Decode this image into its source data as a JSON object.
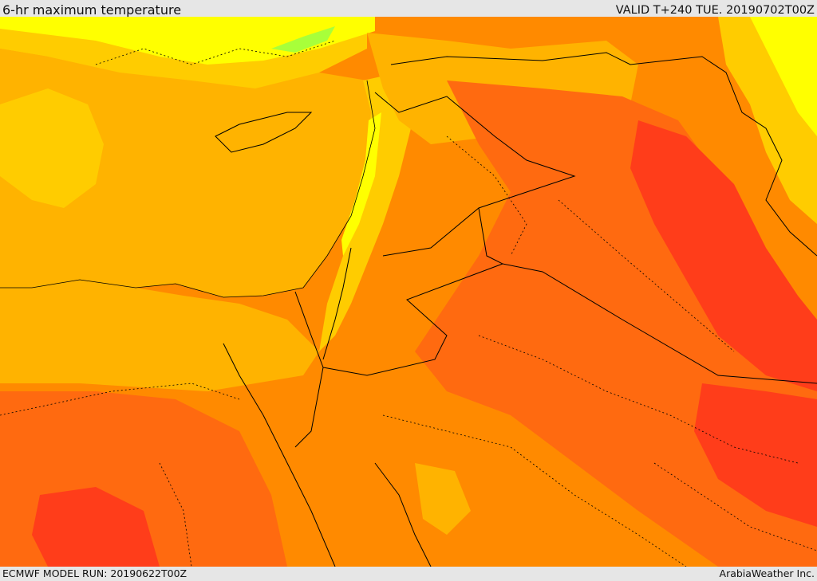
{
  "header": {
    "title": "6-hr maximum temperature",
    "valid": "VALID T+240 TUE. 20190702T00Z"
  },
  "footer": {
    "model_run": "ECMWF MODEL RUN: 20190622T00Z",
    "credit": "ArabiaWeather Inc."
  },
  "map": {
    "field": "6-hr maximum temperature",
    "palette": {
      "cool_green": "#a8ff3a",
      "yellow": "#ffff00",
      "light_orange": "#ffcc00",
      "orange_yellow": "#ffb300",
      "orange": "#ff8a00",
      "orange_red": "#ff6a10",
      "red": "#ff3d1a"
    },
    "border_color": "#000000"
  }
}
